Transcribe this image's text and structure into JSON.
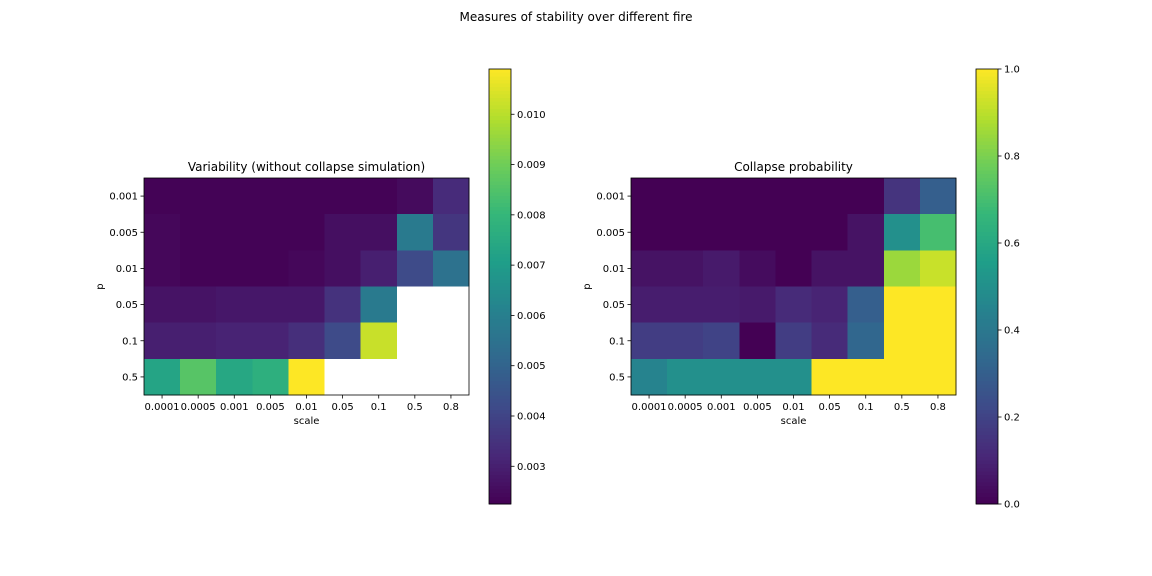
{
  "figure": {
    "suptitle": "Measures of stability over different fire"
  },
  "chart_data": [
    {
      "type": "heatmap",
      "title": "Variability (without collapse simulation)",
      "xlabel": "scale",
      "ylabel": "p",
      "x_categories": [
        "0.0001",
        "0.0005",
        "0.001",
        "0.005",
        "0.01",
        "0.05",
        "0.1",
        "0.5",
        "0.8"
      ],
      "y_categories": [
        "0.001",
        "0.005",
        "0.01",
        "0.05",
        "0.1",
        "0.5"
      ],
      "colormap": "viridis",
      "vmin": 0.00225,
      "vmax": 0.0109,
      "missing_color": "#ffffff",
      "values": [
        [
          0.0023,
          0.0023,
          0.0023,
          0.0023,
          0.0023,
          0.0023,
          0.0023,
          0.0025,
          0.0033
        ],
        [
          0.0024,
          0.0023,
          0.0023,
          0.0023,
          0.0023,
          0.0026,
          0.0026,
          0.0058,
          0.0036
        ],
        [
          0.0024,
          0.0023,
          0.0023,
          0.0023,
          0.0024,
          0.0026,
          0.003,
          0.0042,
          0.0055
        ],
        [
          0.0027,
          0.0027,
          0.0028,
          0.0028,
          0.0028,
          0.0035,
          0.0058,
          null,
          null
        ],
        [
          0.003,
          0.003,
          0.0031,
          0.0031,
          0.0034,
          0.0042,
          0.0102,
          null,
          null
        ],
        [
          0.0073,
          0.0086,
          0.0074,
          0.0077,
          0.0109,
          null,
          null,
          null,
          null
        ]
      ],
      "colorbar_ticks": [
        0.003,
        0.004,
        0.005,
        0.006,
        0.007,
        0.008,
        0.009,
        0.01
      ],
      "colorbar_tick_labels": [
        "0.003",
        "0.004",
        "0.005",
        "0.006",
        "0.007",
        "0.008",
        "0.009",
        "0.010"
      ]
    },
    {
      "type": "heatmap",
      "title": "Collapse probability",
      "xlabel": "scale",
      "ylabel": "p",
      "x_categories": [
        "0.0001",
        "0.0005",
        "0.001",
        "0.005",
        "0.01",
        "0.05",
        "0.1",
        "0.5",
        "0.8"
      ],
      "y_categories": [
        "0.001",
        "0.005",
        "0.01",
        "0.05",
        "0.1",
        "0.5"
      ],
      "colormap": "viridis",
      "vmin": 0.0,
      "vmax": 1.0,
      "missing_color": "#ffffff",
      "values": [
        [
          0.0,
          0.0,
          0.0,
          0.0,
          0.0,
          0.0,
          0.0,
          0.15,
          0.3
        ],
        [
          0.0,
          0.0,
          0.0,
          0.0,
          0.0,
          0.0,
          0.05,
          0.5,
          0.7
        ],
        [
          0.05,
          0.05,
          0.07,
          0.03,
          0.0,
          0.05,
          0.05,
          0.85,
          0.92
        ],
        [
          0.08,
          0.08,
          0.08,
          0.07,
          0.12,
          0.1,
          0.3,
          1.0,
          1.0
        ],
        [
          0.18,
          0.18,
          0.2,
          0.0,
          0.18,
          0.12,
          0.33,
          1.0,
          1.0
        ],
        [
          0.45,
          0.5,
          0.5,
          0.5,
          0.5,
          1.0,
          1.0,
          1.0,
          1.0
        ]
      ],
      "colorbar_ticks": [
        0.0,
        0.2,
        0.4,
        0.6,
        0.8,
        1.0
      ],
      "colorbar_tick_labels": [
        "0.0",
        "0.2",
        "0.4",
        "0.6",
        "0.8",
        "1.0"
      ]
    }
  ]
}
